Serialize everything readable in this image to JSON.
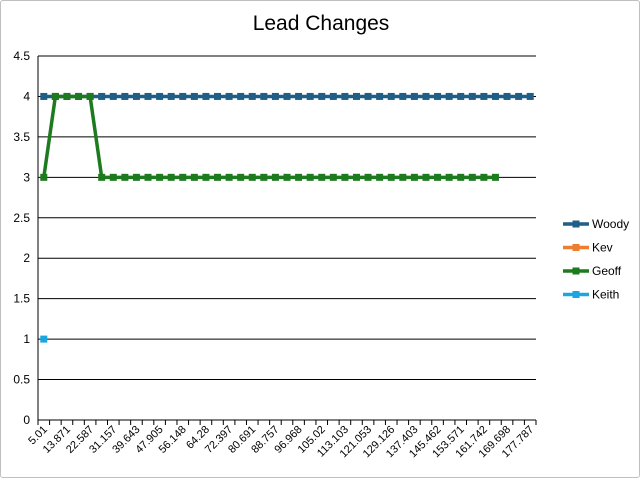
{
  "chart_data": {
    "type": "line",
    "title": "Lead Changes",
    "xlabel": "",
    "ylabel": "",
    "ylim": [
      0,
      4.5
    ],
    "y_ticks": [
      "0",
      "0.5",
      "1",
      "1.5",
      "2",
      "2.5",
      "3",
      "3.5",
      "4",
      "4.5"
    ],
    "x_tick_labels": [
      "5.01",
      "13.871",
      "22.587",
      "31.157",
      "39.643",
      "47.905",
      "56.148",
      "64.28",
      "72.397",
      "80.691",
      "88.757",
      "96.968",
      "105.02",
      "113.103",
      "121.053",
      "129.126",
      "137.403",
      "145.462",
      "153.571",
      "161.742",
      "169.698",
      "177.787"
    ],
    "category_count": 43,
    "grid": true,
    "legend_position": "right",
    "series": [
      {
        "name": "Woody",
        "color": "#1f5f87",
        "start": 0,
        "values": [
          4,
          4,
          4,
          4,
          4,
          4,
          4,
          4,
          4,
          4,
          4,
          4,
          4,
          4,
          4,
          4,
          4,
          4,
          4,
          4,
          4,
          4,
          4,
          4,
          4,
          4,
          4,
          4,
          4,
          4,
          4,
          4,
          4,
          4,
          4,
          4,
          4,
          4,
          4,
          4,
          4,
          4,
          4
        ]
      },
      {
        "name": "Kev",
        "color": "#ed7d31",
        "start": 0,
        "values": []
      },
      {
        "name": "Geoff",
        "color": "#1e7a1e",
        "start": 0,
        "values": [
          3,
          4,
          4,
          4,
          4,
          3,
          3,
          3,
          3,
          3,
          3,
          3,
          3,
          3,
          3,
          3,
          3,
          3,
          3,
          3,
          3,
          3,
          3,
          3,
          3,
          3,
          3,
          3,
          3,
          3,
          3,
          3,
          3,
          3,
          3,
          3,
          3,
          3,
          3,
          3
        ]
      },
      {
        "name": "Keith",
        "color": "#1aa7e0",
        "start": 0,
        "values": [
          1
        ]
      }
    ]
  }
}
